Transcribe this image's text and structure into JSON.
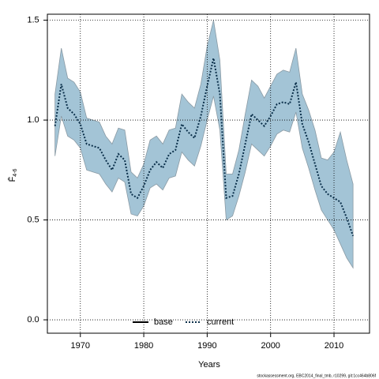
{
  "chart_data": {
    "type": "line",
    "xlabel": "Years",
    "ylabel": {
      "main": "F̄",
      "sub": "4-6"
    },
    "footer": "stockassessment.org, EBC2014_final_tmb, r10299, git:1cc464b806f",
    "x": [
      1966,
      1967,
      1968,
      1969,
      1970,
      1971,
      1972,
      1973,
      1974,
      1975,
      1976,
      1977,
      1978,
      1979,
      1980,
      1981,
      1982,
      1983,
      1984,
      1985,
      1986,
      1987,
      1988,
      1989,
      1990,
      1991,
      1992,
      1993,
      1994,
      1995,
      1996,
      1997,
      1998,
      1999,
      2000,
      2001,
      2002,
      2003,
      2004,
      2005,
      2006,
      2007,
      2008,
      2009,
      2010,
      2011,
      2012,
      2013
    ],
    "series": [
      {
        "name": "base",
        "color": "#000000",
        "values": [
          null,
          null,
          null,
          null,
          null,
          null,
          null,
          null,
          null,
          null,
          null,
          null,
          null,
          null,
          null,
          null,
          null,
          null,
          null,
          null,
          null,
          null,
          null,
          null,
          null,
          null,
          null,
          null,
          null,
          null,
          null,
          null,
          null,
          null,
          null,
          null,
          null,
          null,
          null,
          null,
          null,
          null,
          null,
          null,
          null,
          null,
          null,
          null
        ]
      },
      {
        "name": "current",
        "color": "#0a2f4a",
        "values": [
          0.97,
          1.18,
          1.06,
          1.03,
          0.98,
          0.88,
          0.87,
          0.86,
          0.8,
          0.75,
          0.83,
          0.8,
          0.63,
          0.61,
          0.67,
          0.75,
          0.79,
          0.76,
          0.83,
          0.85,
          0.98,
          0.94,
          0.91,
          1.02,
          1.17,
          1.31,
          1.13,
          0.61,
          0.62,
          0.73,
          0.88,
          1.03,
          1.0,
          0.97,
          1.02,
          1.08,
          1.09,
          1.08,
          1.19,
          0.98,
          0.89,
          0.78,
          0.67,
          0.63,
          0.61,
          0.59,
          0.51,
          0.42
        ]
      }
    ],
    "band": {
      "color": "#a3c4d6",
      "upper": [
        1.13,
        1.36,
        1.21,
        1.19,
        1.14,
        1.01,
        1.0,
        0.99,
        0.92,
        0.88,
        0.96,
        0.95,
        0.74,
        0.71,
        0.78,
        0.9,
        0.92,
        0.88,
        0.95,
        0.96,
        1.13,
        1.09,
        1.06,
        1.18,
        1.37,
        1.5,
        1.3,
        0.73,
        0.73,
        0.85,
        1.03,
        1.2,
        1.17,
        1.11,
        1.17,
        1.23,
        1.25,
        1.24,
        1.36,
        1.13,
        1.05,
        0.95,
        0.81,
        0.8,
        0.84,
        0.94,
        0.8,
        0.68
      ],
      "lower": [
        0.82,
        1.02,
        0.92,
        0.9,
        0.86,
        0.75,
        0.74,
        0.73,
        0.68,
        0.64,
        0.71,
        0.69,
        0.53,
        0.52,
        0.57,
        0.66,
        0.68,
        0.65,
        0.71,
        0.72,
        0.84,
        0.8,
        0.77,
        0.87,
        1.0,
        1.12,
        0.95,
        0.5,
        0.52,
        0.62,
        0.74,
        0.88,
        0.85,
        0.82,
        0.87,
        0.93,
        0.95,
        0.94,
        1.04,
        0.86,
        0.76,
        0.65,
        0.55,
        0.5,
        0.45,
        0.38,
        0.31,
        0.26
      ]
    },
    "xlim": [
      1964.8,
      2015.6
    ],
    "ylim": [
      -0.067,
      1.53
    ],
    "xticks": [
      1970,
      1980,
      1990,
      2000,
      2010
    ],
    "yticks": [
      {
        "value": 0,
        "label": "0.0"
      },
      0.5,
      {
        "value": 1,
        "label": "1.0"
      },
      1.5
    ],
    "grid": true,
    "legend": "bottom"
  }
}
